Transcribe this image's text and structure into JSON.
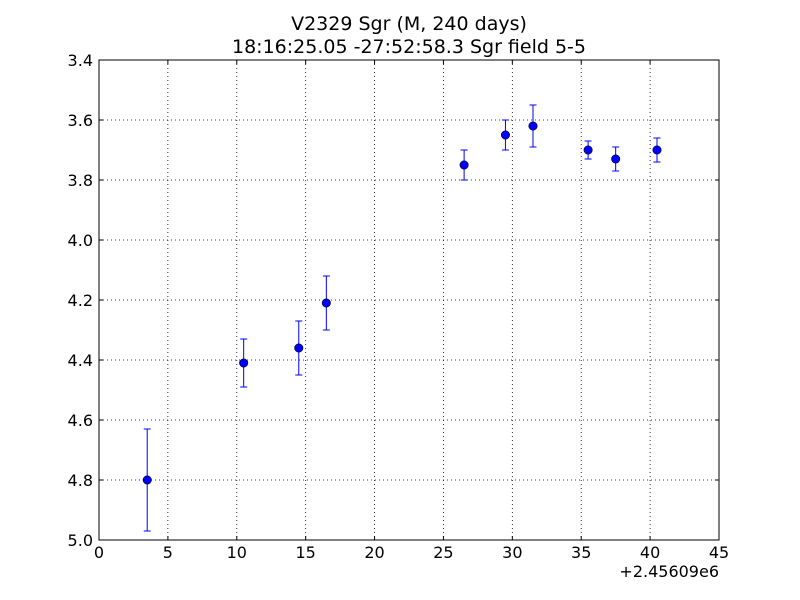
{
  "chart_data": {
    "type": "scatter",
    "title": "V2329 Sgr (M, 240 days)",
    "subtitle": "18:16:25.05 -27:52:58.3 Sgr field 5-5",
    "xlabel": "",
    "ylabel": "",
    "x_offset_label": "+2.45609e6",
    "xlim": [
      0,
      45
    ],
    "ylim": [
      5.0,
      3.4
    ],
    "y_inverted": true,
    "grid": true,
    "grid_style": "dotted",
    "x_ticks": [
      0,
      5,
      10,
      15,
      20,
      25,
      30,
      35,
      40,
      45
    ],
    "y_ticks": [
      3.4,
      3.6,
      3.8,
      4.0,
      4.2,
      4.4,
      4.6,
      4.8,
      5.0
    ],
    "x_tick_labels": [
      "0",
      "5",
      "10",
      "15",
      "20",
      "25",
      "30",
      "35",
      "40",
      "45"
    ],
    "y_tick_labels": [
      "3.4",
      "3.6",
      "3.8",
      "4.0",
      "4.2",
      "4.4",
      "4.6",
      "4.8",
      "5.0"
    ],
    "marker_color": "#0000ff",
    "series": [
      {
        "points": [
          {
            "x": 3.5,
            "y": 4.8,
            "err": 0.17
          },
          {
            "x": 10.5,
            "y": 4.41,
            "err": 0.08
          },
          {
            "x": 14.5,
            "y": 4.36,
            "err": 0.09
          },
          {
            "x": 16.5,
            "y": 4.21,
            "err": 0.09
          },
          {
            "x": 26.5,
            "y": 3.75,
            "err": 0.05
          },
          {
            "x": 29.5,
            "y": 3.65,
            "err": 0.05
          },
          {
            "x": 31.5,
            "y": 3.62,
            "err": 0.07
          },
          {
            "x": 35.5,
            "y": 3.7,
            "err": 0.03
          },
          {
            "x": 37.5,
            "y": 3.73,
            "err": 0.04
          },
          {
            "x": 40.5,
            "y": 3.7,
            "err": 0.04
          }
        ]
      }
    ]
  }
}
